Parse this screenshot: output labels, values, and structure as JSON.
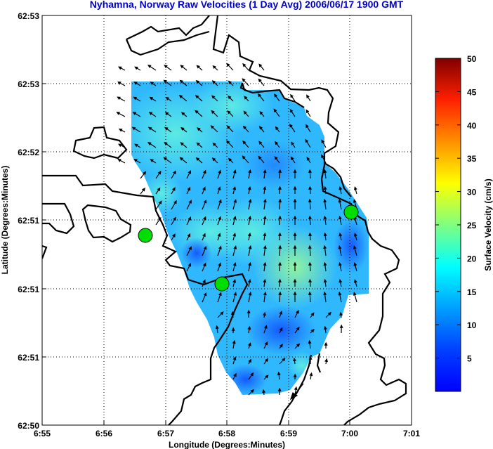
{
  "chart_data": {
    "type": "heatmap",
    "title": "Nyhamna, Norway Raw Velocities (1 Day Avg) 2006/06/17 1900 GMT",
    "xlabel": "Longitude (Degrees:Minutes)",
    "ylabel": "Latitude (Degrees:Minutes)",
    "x_ticks": [
      "6:55",
      "6:56",
      "6:57",
      "6:58",
      "6:59",
      "7:00",
      "7:01"
    ],
    "y_ticks": [
      "62:53",
      "62:53",
      "62:52",
      "62:51",
      "62:51",
      "62:51",
      "62:50"
    ],
    "colorbar": {
      "label": "Surface Velocity (cm/s)",
      "ticks": [
        5,
        10,
        15,
        20,
        25,
        30,
        35,
        40,
        45,
        50
      ],
      "range": [
        0,
        50
      ]
    },
    "grid": true,
    "stations": 3,
    "colors": {
      "title": "#0000cc",
      "station": "#00dd00",
      "arrows": "#000000"
    }
  }
}
